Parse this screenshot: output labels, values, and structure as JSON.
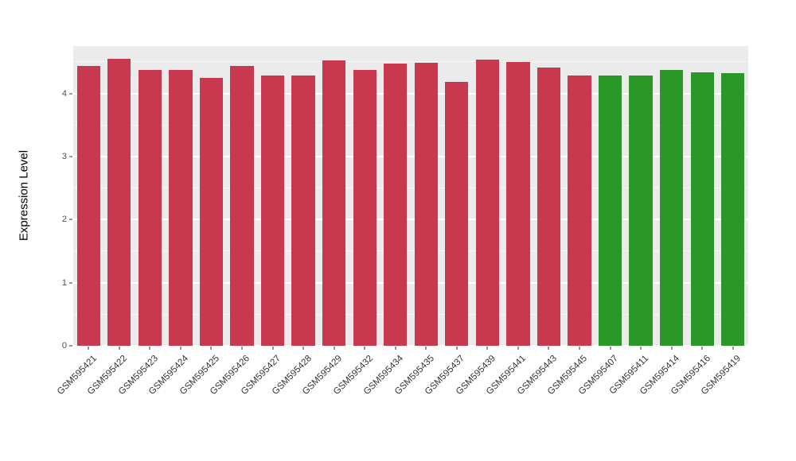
{
  "chart_data": {
    "type": "bar",
    "title": "",
    "xlabel": "",
    "ylabel": "Expression Level",
    "ylim": [
      0,
      4.75
    ],
    "yticks": [
      0,
      1,
      2,
      3,
      4
    ],
    "yticks_minor": [
      0.5,
      1.5,
      2.5,
      3.5,
      4.5
    ],
    "grid": "on",
    "legend": "none",
    "categories": [
      "GSM595421",
      "GSM595422",
      "GSM595423",
      "GSM595424",
      "GSM595425",
      "GSM595426",
      "GSM595427",
      "GSM595428",
      "GSM595429",
      "GSM595432",
      "GSM595434",
      "GSM595435",
      "GSM595437",
      "GSM595439",
      "GSM595441",
      "GSM595443",
      "GSM595445",
      "GSM595407",
      "GSM595411",
      "GSM595414",
      "GSM595416",
      "GSM595419"
    ],
    "values": [
      4.43,
      4.55,
      4.37,
      4.37,
      4.25,
      4.43,
      4.28,
      4.29,
      4.52,
      4.37,
      4.47,
      4.49,
      4.18,
      4.53,
      4.5,
      4.41,
      4.28,
      4.29,
      4.29,
      4.37,
      4.33,
      4.32
    ],
    "bar_groups": [
      "red",
      "red",
      "red",
      "red",
      "red",
      "red",
      "red",
      "red",
      "red",
      "red",
      "red",
      "red",
      "red",
      "red",
      "red",
      "red",
      "red",
      "green",
      "green",
      "green",
      "green",
      "green"
    ],
    "group_colors": {
      "red": "#C8384E",
      "green": "#2A9728"
    }
  },
  "colors": {
    "panel_background": "#EBEBEB",
    "gridline": "#FFFFFF",
    "axis_text": "#4D4D4D",
    "axis_title": "#000000"
  }
}
